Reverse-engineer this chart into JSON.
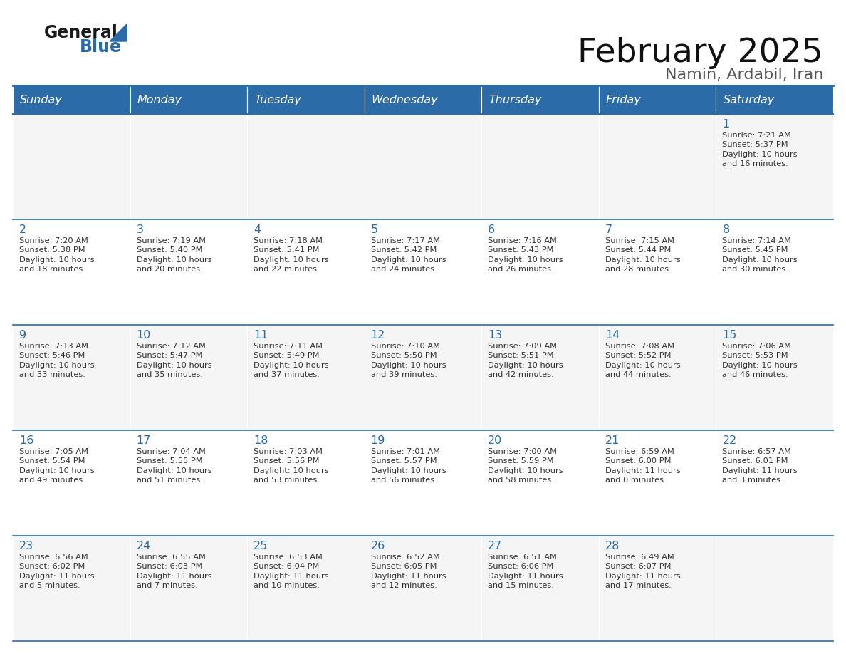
{
  "title": "February 2025",
  "subtitle": "Namin, Ardabil, Iran",
  "days_of_week": [
    "Sunday",
    "Monday",
    "Tuesday",
    "Wednesday",
    "Thursday",
    "Friday",
    "Saturday"
  ],
  "header_bg": "#2B6CA8",
  "header_text_color": "#FFFFFF",
  "day_num_color": "#2B6CA8",
  "cell_text_color": "#333333",
  "line_color": "#2B6CA8",
  "row_bg": [
    "#F5F5F5",
    "#FFFFFF",
    "#F5F5F5",
    "#FFFFFF",
    "#F5F5F5"
  ],
  "bg_color": "#FFFFFF",
  "calendar": [
    [
      null,
      null,
      null,
      null,
      null,
      null,
      {
        "day": 1,
        "sunrise": "7:21 AM",
        "sunset": "5:37 PM",
        "daylight": "10 hours and 16 minutes."
      }
    ],
    [
      {
        "day": 2,
        "sunrise": "7:20 AM",
        "sunset": "5:38 PM",
        "daylight": "10 hours and 18 minutes."
      },
      {
        "day": 3,
        "sunrise": "7:19 AM",
        "sunset": "5:40 PM",
        "daylight": "10 hours and 20 minutes."
      },
      {
        "day": 4,
        "sunrise": "7:18 AM",
        "sunset": "5:41 PM",
        "daylight": "10 hours and 22 minutes."
      },
      {
        "day": 5,
        "sunrise": "7:17 AM",
        "sunset": "5:42 PM",
        "daylight": "10 hours and 24 minutes."
      },
      {
        "day": 6,
        "sunrise": "7:16 AM",
        "sunset": "5:43 PM",
        "daylight": "10 hours and 26 minutes."
      },
      {
        "day": 7,
        "sunrise": "7:15 AM",
        "sunset": "5:44 PM",
        "daylight": "10 hours and 28 minutes."
      },
      {
        "day": 8,
        "sunrise": "7:14 AM",
        "sunset": "5:45 PM",
        "daylight": "10 hours and 30 minutes."
      }
    ],
    [
      {
        "day": 9,
        "sunrise": "7:13 AM",
        "sunset": "5:46 PM",
        "daylight": "10 hours and 33 minutes."
      },
      {
        "day": 10,
        "sunrise": "7:12 AM",
        "sunset": "5:47 PM",
        "daylight": "10 hours and 35 minutes."
      },
      {
        "day": 11,
        "sunrise": "7:11 AM",
        "sunset": "5:49 PM",
        "daylight": "10 hours and 37 minutes."
      },
      {
        "day": 12,
        "sunrise": "7:10 AM",
        "sunset": "5:50 PM",
        "daylight": "10 hours and 39 minutes."
      },
      {
        "day": 13,
        "sunrise": "7:09 AM",
        "sunset": "5:51 PM",
        "daylight": "10 hours and 42 minutes."
      },
      {
        "day": 14,
        "sunrise": "7:08 AM",
        "sunset": "5:52 PM",
        "daylight": "10 hours and 44 minutes."
      },
      {
        "day": 15,
        "sunrise": "7:06 AM",
        "sunset": "5:53 PM",
        "daylight": "10 hours and 46 minutes."
      }
    ],
    [
      {
        "day": 16,
        "sunrise": "7:05 AM",
        "sunset": "5:54 PM",
        "daylight": "10 hours and 49 minutes."
      },
      {
        "day": 17,
        "sunrise": "7:04 AM",
        "sunset": "5:55 PM",
        "daylight": "10 hours and 51 minutes."
      },
      {
        "day": 18,
        "sunrise": "7:03 AM",
        "sunset": "5:56 PM",
        "daylight": "10 hours and 53 minutes."
      },
      {
        "day": 19,
        "sunrise": "7:01 AM",
        "sunset": "5:57 PM",
        "daylight": "10 hours and 56 minutes."
      },
      {
        "day": 20,
        "sunrise": "7:00 AM",
        "sunset": "5:59 PM",
        "daylight": "10 hours and 58 minutes."
      },
      {
        "day": 21,
        "sunrise": "6:59 AM",
        "sunset": "6:00 PM",
        "daylight": "11 hours and 0 minutes."
      },
      {
        "day": 22,
        "sunrise": "6:57 AM",
        "sunset": "6:01 PM",
        "daylight": "11 hours and 3 minutes."
      }
    ],
    [
      {
        "day": 23,
        "sunrise": "6:56 AM",
        "sunset": "6:02 PM",
        "daylight": "11 hours and 5 minutes."
      },
      {
        "day": 24,
        "sunrise": "6:55 AM",
        "sunset": "6:03 PM",
        "daylight": "11 hours and 7 minutes."
      },
      {
        "day": 25,
        "sunrise": "6:53 AM",
        "sunset": "6:04 PM",
        "daylight": "11 hours and 10 minutes."
      },
      {
        "day": 26,
        "sunrise": "6:52 AM",
        "sunset": "6:05 PM",
        "daylight": "11 hours and 12 minutes."
      },
      {
        "day": 27,
        "sunrise": "6:51 AM",
        "sunset": "6:06 PM",
        "daylight": "11 hours and 15 minutes."
      },
      {
        "day": 28,
        "sunrise": "6:49 AM",
        "sunset": "6:07 PM",
        "daylight": "11 hours and 17 minutes."
      },
      null
    ]
  ]
}
